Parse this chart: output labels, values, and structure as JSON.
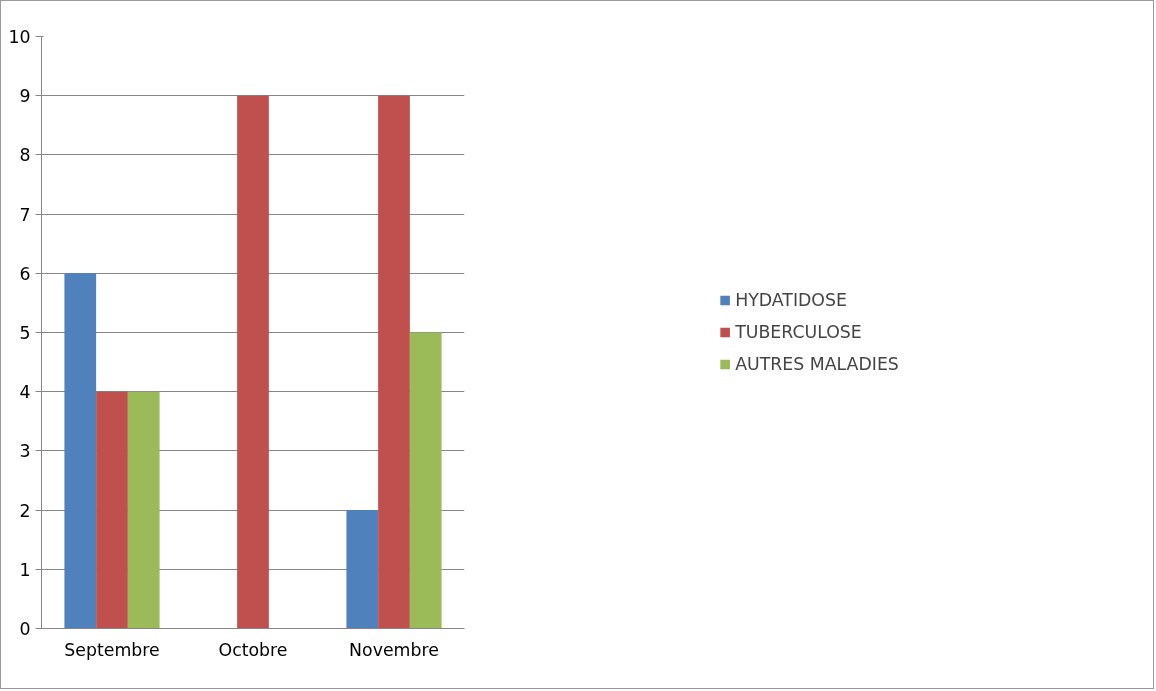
{
  "chart_data": {
    "type": "bar",
    "categories": [
      "Septembre",
      "Octobre",
      "Novembre"
    ],
    "series": [
      {
        "name": "HYDATIDOSE",
        "color": "#4f81bd",
        "values": [
          6,
          0,
          2
        ]
      },
      {
        "name": "TUBERCULOSE",
        "color": "#c0504d",
        "values": [
          4,
          9,
          9
        ]
      },
      {
        "name": "AUTRES MALADIES",
        "color": "#9bbb59",
        "values": [
          4,
          0,
          5
        ]
      }
    ],
    "ylim": [
      0,
      10
    ],
    "yticks": [
      0,
      1,
      2,
      3,
      4,
      5,
      6,
      7,
      8,
      9,
      10
    ],
    "grid": "y",
    "legend": "right"
  }
}
